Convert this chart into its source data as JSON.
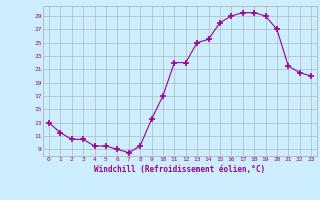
{
  "x": [
    0,
    1,
    2,
    3,
    4,
    5,
    6,
    7,
    8,
    9,
    10,
    11,
    12,
    13,
    14,
    15,
    16,
    17,
    18,
    19,
    20,
    21,
    22,
    23
  ],
  "y": [
    13,
    11.5,
    10.5,
    10.5,
    9.5,
    9.5,
    9,
    8.5,
    9.5,
    13.5,
    17,
    22,
    22,
    25,
    25.5,
    28,
    29,
    29.5,
    29.5,
    29,
    27,
    21.5,
    20.5,
    20
  ],
  "line_color": "#990099",
  "marker": "+",
  "marker_size": 4,
  "marker_lw": 1.2,
  "bg_color": "#cceeff",
  "grid_color": "#aaaaaa",
  "xlabel": "Windchill (Refroidissement éolien,°C)",
  "xlabel_color": "#990099",
  "tick_color": "#990099",
  "yticks": [
    9,
    11,
    13,
    15,
    17,
    19,
    21,
    23,
    25,
    27,
    29
  ],
  "ylim": [
    8.0,
    30.5
  ],
  "xlim": [
    -0.5,
    23.5
  ]
}
